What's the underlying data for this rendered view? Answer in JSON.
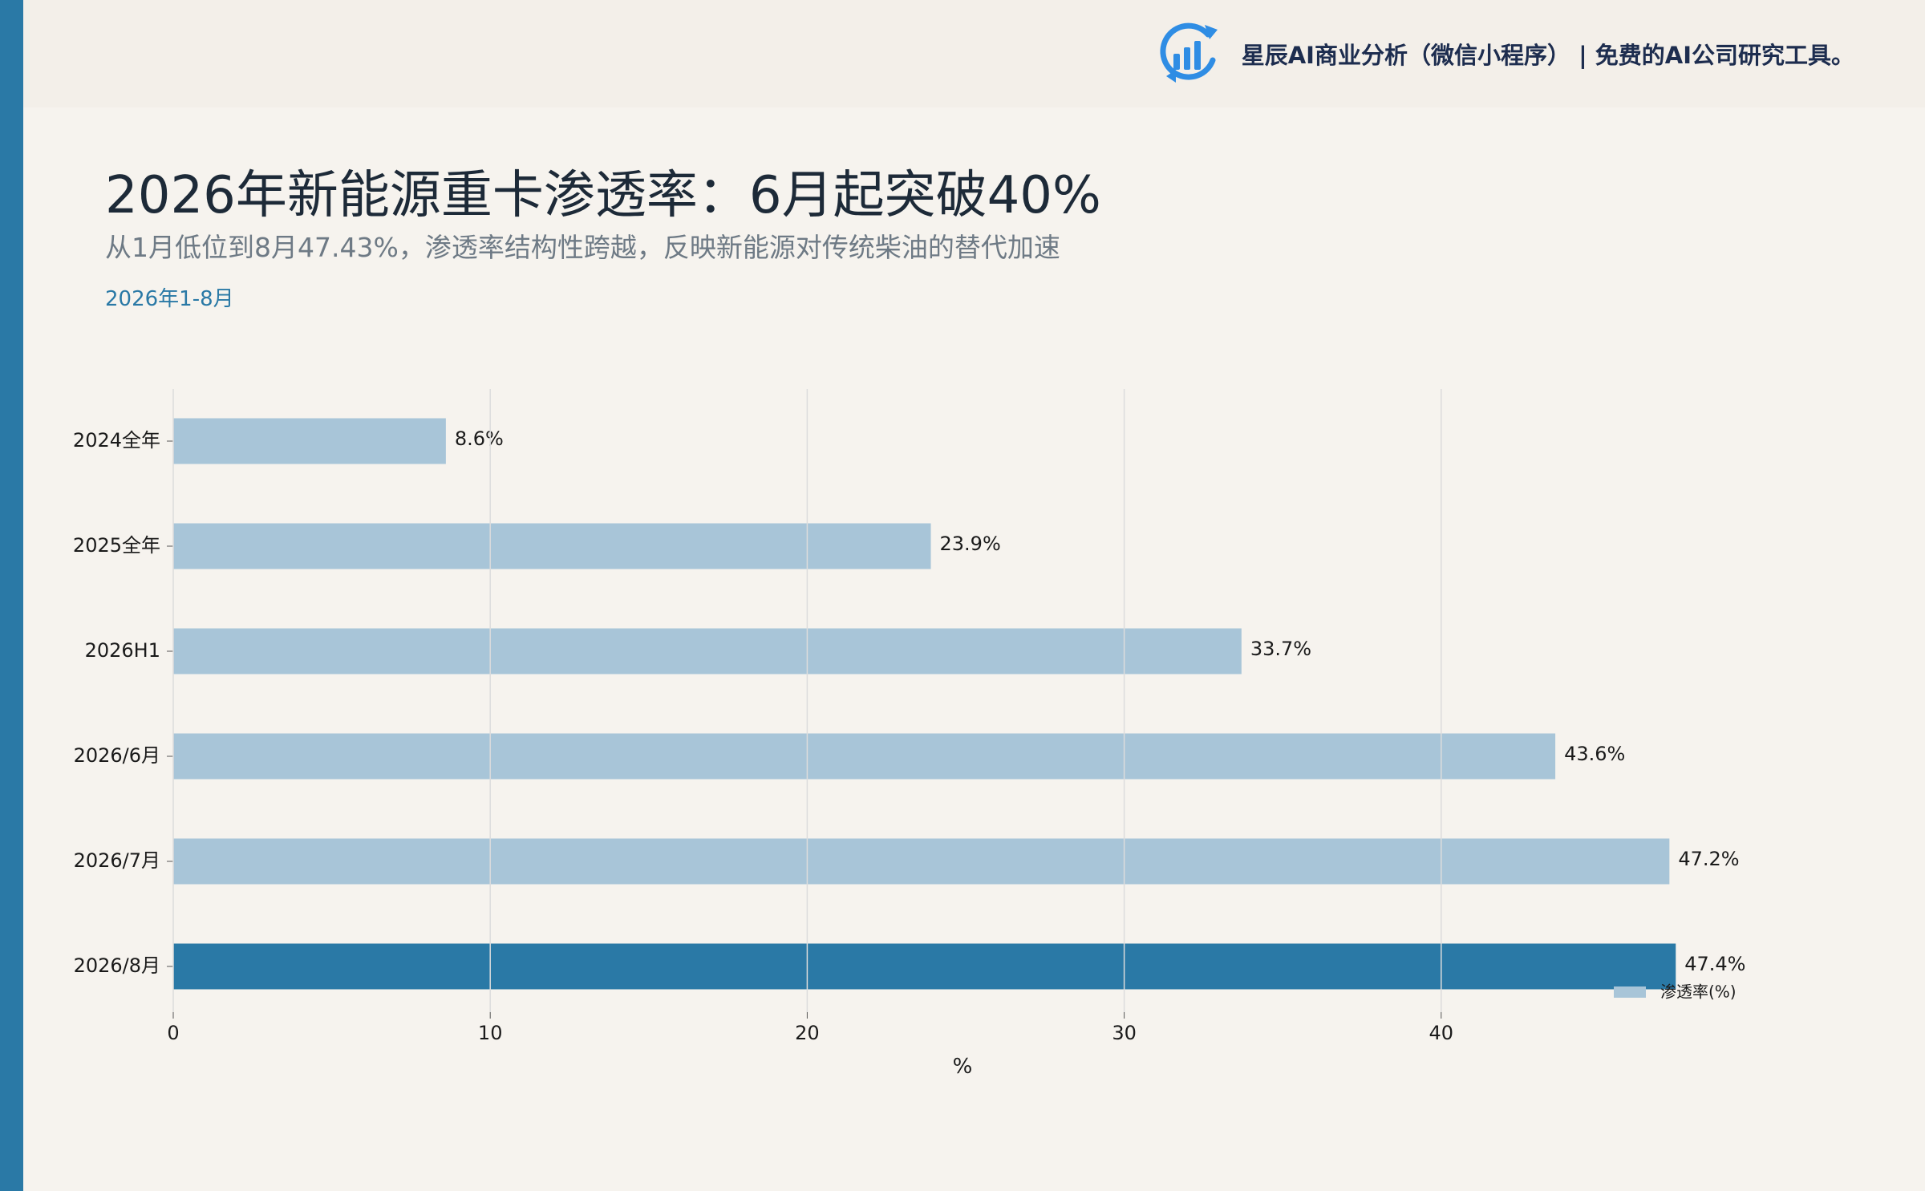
{
  "brand": {
    "text": "星辰AI商业分析（微信小程序）  |  免费的AI公司研究工具。",
    "logo_icon": "bar-chart-circle-icon"
  },
  "header": {
    "title": "2026年新能源重卡渗透率：6月起突破40%",
    "subtitle": "从1月低位到8月47.43%，渗透率结构性跨越，反映新能源对传统柴油的替代加速",
    "period": "2026年1-8月"
  },
  "colors": {
    "accent": "#2a79a6",
    "bar_default": "#a8c5d8",
    "bar_highlight": "#2a79a6",
    "background": "#f6f3ee"
  },
  "chart_data": {
    "type": "bar",
    "orientation": "horizontal",
    "categories": [
      "2024全年",
      "2025全年",
      "2026H1",
      "2026/6月",
      "2026/7月",
      "2026/8月"
    ],
    "series": [
      {
        "name": "渗透率(%)",
        "values": [
          8.6,
          23.9,
          33.7,
          43.6,
          47.2,
          47.4
        ],
        "labels": [
          "8.6%",
          "23.9%",
          "33.7%",
          "43.6%",
          "47.2%",
          "47.4%"
        ]
      }
    ],
    "highlight_index": 5,
    "xlabel": "%",
    "ylabel": "",
    "xlim": [
      0,
      50
    ],
    "xticks": [
      0,
      10,
      20,
      30,
      40
    ],
    "grid": "vertical",
    "legend_position": "bottom-right"
  }
}
